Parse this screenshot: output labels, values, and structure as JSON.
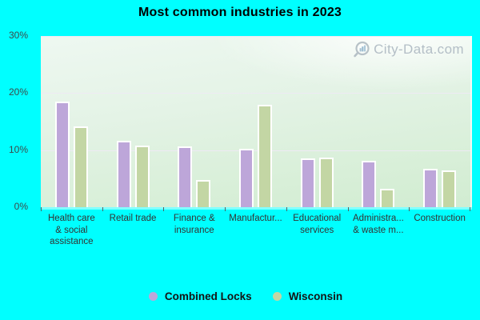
{
  "title": "Most common industries in 2023",
  "watermark": {
    "text": "City-Data.com",
    "icon": "magnifier-bars-icon"
  },
  "colors": {
    "page_background": "#00ffff",
    "combined_locks": "#bda6d9",
    "wisconsin": "#c3d6a4",
    "gridline": "#ece9f3",
    "watermark_gray": "#a4b0bb"
  },
  "chart_data": {
    "type": "bar",
    "title": "Most common industries in 2023",
    "categories": [
      {
        "label": "Health care & social assistance",
        "lines": [
          "Health care",
          "& social",
          "assistance"
        ]
      },
      {
        "label": "Retail trade",
        "lines": [
          "Retail trade"
        ]
      },
      {
        "label": "Finance & insurance",
        "lines": [
          "Finance &",
          "insurance"
        ]
      },
      {
        "label": "Manufactur...",
        "lines": [
          "Manufactur..."
        ]
      },
      {
        "label": "Educational services",
        "lines": [
          "Educational",
          "services"
        ]
      },
      {
        "label": "Administra... & waste m...",
        "lines": [
          "Administra...",
          "& waste m..."
        ]
      },
      {
        "label": "Construction",
        "lines": [
          "Construction"
        ]
      }
    ],
    "series": [
      {
        "name": "Combined Locks",
        "color": "#bda6d9",
        "values": [
          18.5,
          11.7,
          10.7,
          10.2,
          8.6,
          8.1,
          6.8
        ]
      },
      {
        "name": "Wisconsin",
        "color": "#c3d6a4",
        "values": [
          14.2,
          10.8,
          4.8,
          18.0,
          8.7,
          3.3,
          6.4
        ]
      }
    ],
    "xlabel": "",
    "ylabel": "",
    "ylim": [
      0,
      30
    ],
    "yticks": [
      "0%",
      "10%",
      "20%",
      "30%"
    ],
    "grid": true,
    "legend_position": "bottom"
  }
}
